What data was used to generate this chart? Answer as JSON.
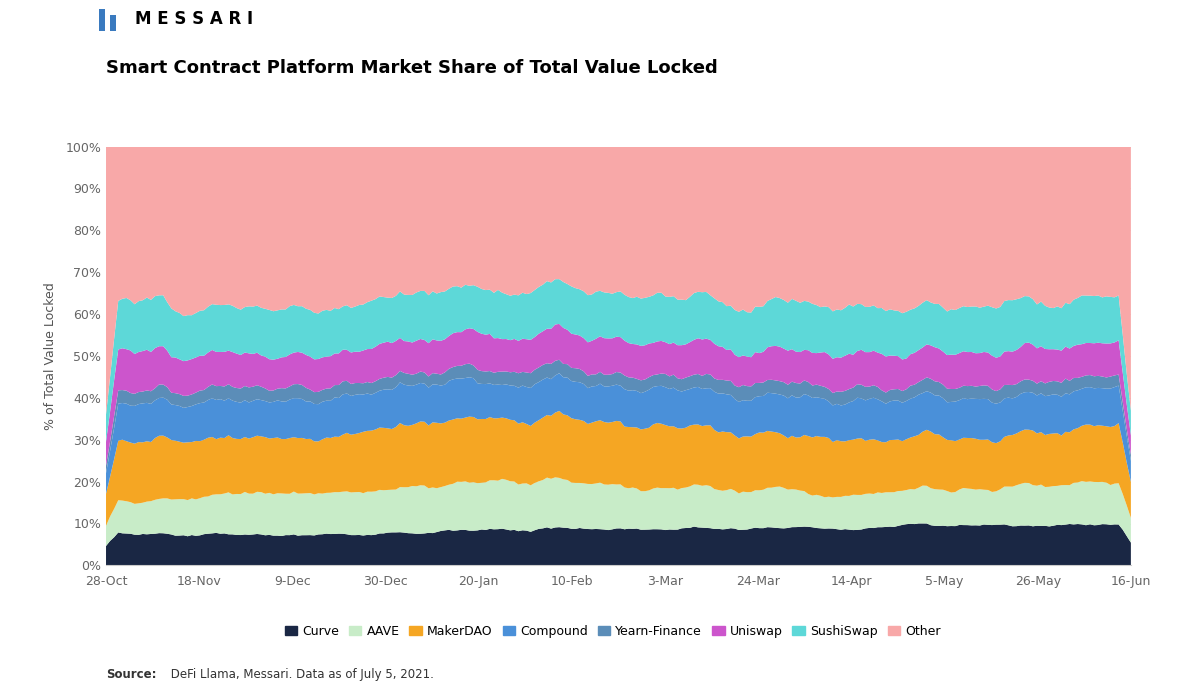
{
  "title": "Smart Contract Platform Market Share of Total Value Locked",
  "ylabel": "% of Total Value Locked",
  "source_text": "Source: DeFi Llama, Messari. Data as of July 5, 2021.",
  "logo_text": "MESSARI",
  "colors": {
    "Curve": "#1a2744",
    "AAVE": "#c8ecc8",
    "MakerDAO": "#f5a623",
    "Compound": "#4a90d9",
    "Yearn-Finance": "#5b8db8",
    "Uniswap": "#cc55cc",
    "SushiSwap": "#5dd8d8",
    "Other": "#f8a8a8"
  },
  "x_labels": [
    "28-Oct",
    "18-Nov",
    "9-Dec",
    "30-Dec",
    "20-Jan",
    "10-Feb",
    "3-Mar",
    "24-Mar",
    "14-Apr",
    "5-May",
    "26-May",
    "16-Jun"
  ],
  "n_points": 252
}
